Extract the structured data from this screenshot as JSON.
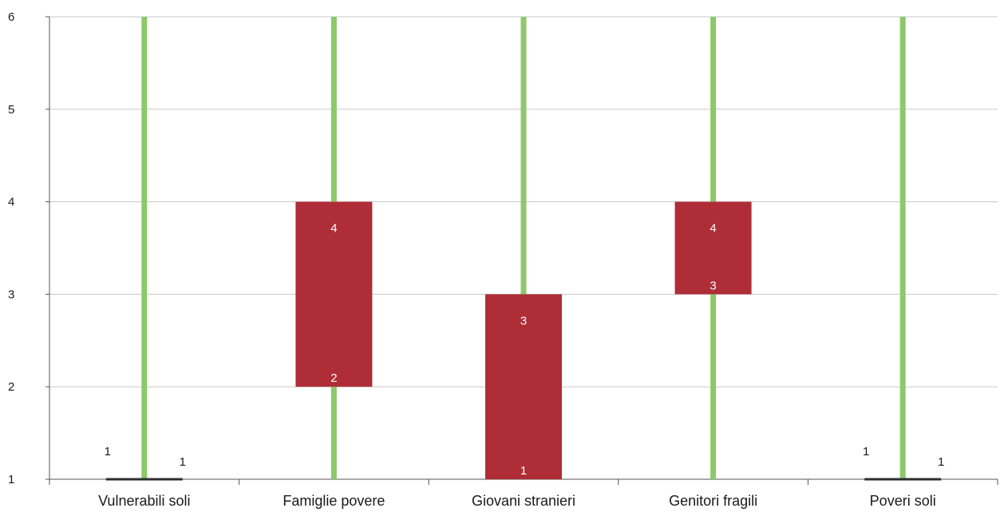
{
  "chart_data": {
    "type": "candlestick",
    "categories": [
      "Vulnerabili soli",
      "Famiglie povere",
      "Giovani stranieri",
      "Genitori fragili",
      "Poveri soli"
    ],
    "series": [
      {
        "values": [
          {
            "low": 1,
            "high": 6,
            "open": 1,
            "close": 1
          },
          {
            "low": 1,
            "high": 6,
            "open": 2,
            "close": 4
          },
          {
            "low": 1,
            "high": 6,
            "open": 1,
            "close": 3
          },
          {
            "low": 1,
            "high": 6,
            "open": 3,
            "close": 4
          },
          {
            "low": 1,
            "high": 6,
            "open": 1,
            "close": 1
          }
        ]
      }
    ],
    "data_labels": [
      {
        "category": "Vulnerabili soli",
        "text": "1",
        "value": 1,
        "side": "left"
      },
      {
        "category": "Vulnerabili soli",
        "text": "1",
        "value": 1,
        "side": "right"
      },
      {
        "category": "Famiglie povere",
        "text": "4",
        "value": 4,
        "side": "inside-top"
      },
      {
        "category": "Famiglie povere",
        "text": "2",
        "value": 2,
        "side": "inside-bottom"
      },
      {
        "category": "Giovani stranieri",
        "text": "3",
        "value": 3,
        "side": "inside-top"
      },
      {
        "category": "Giovani stranieri",
        "text": "1",
        "value": 1,
        "side": "inside-bottom"
      },
      {
        "category": "Genitori fragili",
        "text": "4",
        "value": 4,
        "side": "inside-top"
      },
      {
        "category": "Genitori fragili",
        "text": "3",
        "value": 3,
        "side": "inside-bottom"
      },
      {
        "category": "Poveri soli",
        "text": "1",
        "value": 1,
        "side": "left"
      },
      {
        "category": "Poveri soli",
        "text": "1",
        "value": 1,
        "side": "right"
      }
    ],
    "y_ticks": [
      "1",
      "2",
      "3",
      "4",
      "5",
      "6"
    ],
    "ylim": [
      1,
      6
    ],
    "grid": true,
    "legend": "none",
    "title": "",
    "xlabel": "",
    "ylabel": "",
    "colors": {
      "wick": "#8dc86a",
      "body": "#ae2d37",
      "flat_body": "#2d2d2d",
      "grid": "#c8c8c8",
      "axis": "#555555",
      "inside_label": "#ffffff",
      "outside_label": "#1a1a1a"
    }
  }
}
